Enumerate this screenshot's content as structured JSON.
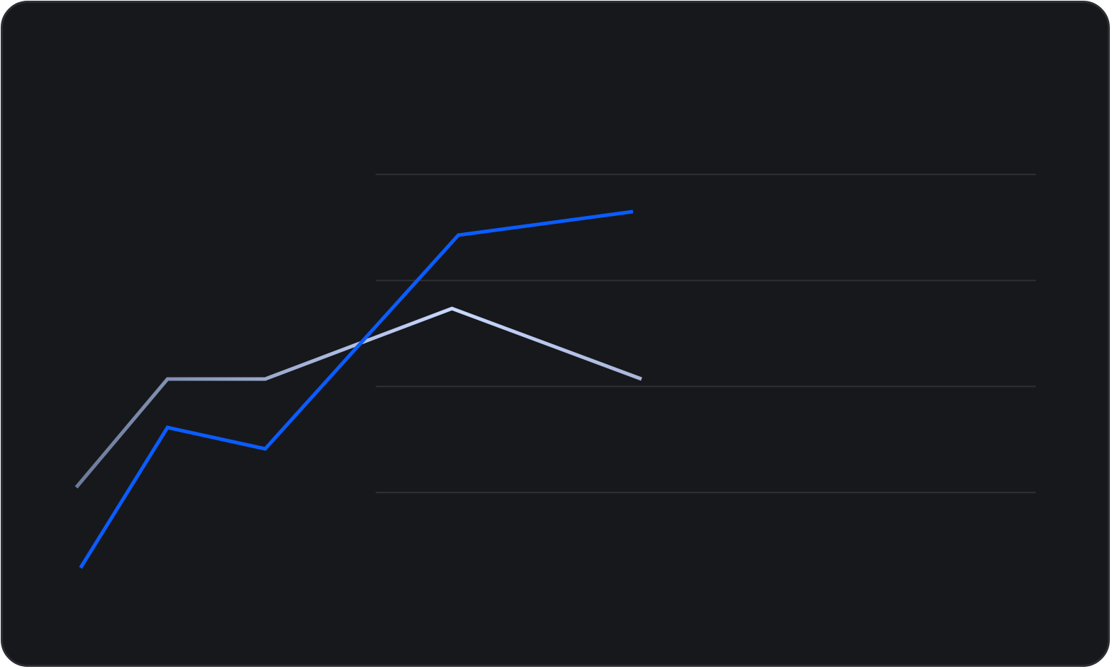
{
  "colors": {
    "background": "#17181c",
    "border": "#2c2e33",
    "gridline": "#2e3036",
    "series_a": "#0a5cff",
    "series_b_start": "#6b7a99",
    "series_b_mid": "#c9d8ff",
    "series_b_end": "#a8b6d8"
  },
  "chart_data": {
    "type": "line",
    "title": "",
    "xlabel": "",
    "ylabel": "",
    "grid": true,
    "legend": "none",
    "x": [
      0,
      1,
      2,
      3,
      4
    ],
    "xlim": [
      0,
      4
    ],
    "ylim": [
      0,
      100
    ],
    "gridlines": [
      20,
      40,
      60,
      80
    ],
    "series": [
      {
        "values": [
          1,
          30,
          24,
          89,
          97
        ],
        "x": [
          0,
          1,
          2,
          4,
          5.8
        ],
        "color": "#0a5cff"
      },
      {
        "values": [
          28,
          57,
          57,
          76,
          57
        ],
        "x": [
          0,
          1,
          2,
          4,
          6
        ],
        "color": "#a8b6d8"
      }
    ]
  }
}
